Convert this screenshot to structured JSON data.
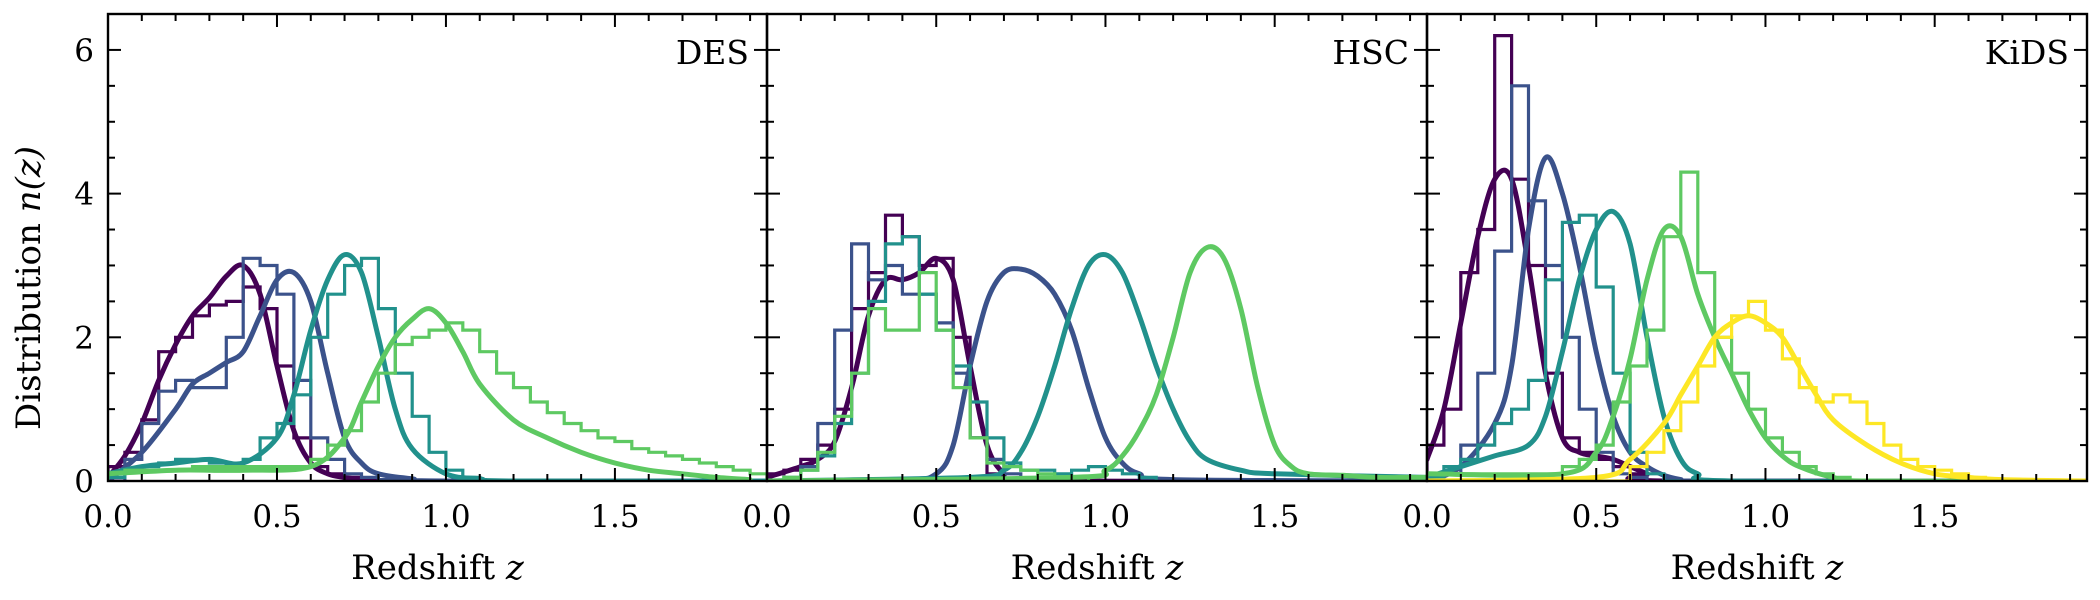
{
  "chart_data": [
    {
      "type": "line",
      "panel_label": "DES",
      "xlabel": "Redshift",
      "xlabel_symbol": "z",
      "ylabel": "Distribution",
      "ylabel_symbol": "n(z)",
      "xlim": [
        0.0,
        1.95
      ],
      "ylim": [
        0,
        6.5
      ],
      "xticks": [
        0.0,
        0.5,
        1.0,
        1.5
      ],
      "xtick_labels": [
        "0.0",
        "0.5",
        "1.0",
        "1.5"
      ],
      "yticks": [
        0,
        2,
        4,
        6
      ],
      "ytick_labels": [
        "0",
        "2",
        "4",
        "6"
      ],
      "histogram_bin_width": 0.05,
      "series": [
        {
          "color": "#440154",
          "smooth_x": [
            0.0,
            0.05,
            0.1,
            0.15,
            0.2,
            0.25,
            0.3,
            0.35,
            0.4,
            0.45,
            0.5,
            0.55,
            0.6,
            0.65,
            0.7,
            0.75,
            0.8,
            1.95
          ],
          "smooth_y": [
            0.05,
            0.35,
            0.8,
            1.4,
            1.9,
            2.3,
            2.55,
            2.85,
            3.0,
            2.6,
            1.6,
            0.7,
            0.25,
            0.1,
            0.05,
            0.02,
            0.0,
            0.0
          ],
          "hist_y": [
            0.2,
            0.4,
            0.85,
            1.8,
            2.0,
            2.3,
            2.45,
            2.5,
            2.7,
            2.4,
            1.6,
            0.6,
            0.2,
            0.1,
            0.05,
            0.02,
            0.0
          ]
        },
        {
          "color": "#3b528b",
          "smooth_x": [
            0.0,
            0.1,
            0.2,
            0.25,
            0.3,
            0.35,
            0.4,
            0.45,
            0.5,
            0.55,
            0.6,
            0.65,
            0.7,
            0.75,
            0.8,
            0.9,
            1.0,
            1.95
          ],
          "smooth_y": [
            0.0,
            0.4,
            1.0,
            1.35,
            1.5,
            1.65,
            1.8,
            2.3,
            2.8,
            2.9,
            2.5,
            1.5,
            0.6,
            0.25,
            0.1,
            0.03,
            0.0,
            0.0
          ],
          "hist_y": [
            0.0,
            0.3,
            0.8,
            1.25,
            1.4,
            1.3,
            1.3,
            2.0,
            3.1,
            3.0,
            2.6,
            1.4,
            0.6,
            0.3,
            0.1,
            0.05,
            0.02,
            0.0,
            0.0,
            0.0
          ]
        },
        {
          "color": "#21918c",
          "smooth_x": [
            0.0,
            0.1,
            0.2,
            0.3,
            0.4,
            0.5,
            0.55,
            0.6,
            0.65,
            0.7,
            0.75,
            0.8,
            0.85,
            0.9,
            1.0,
            1.1,
            1.2,
            1.95
          ],
          "smooth_y": [
            0.1,
            0.2,
            0.25,
            0.3,
            0.25,
            0.6,
            1.2,
            2.1,
            2.8,
            3.15,
            2.9,
            2.0,
            1.0,
            0.45,
            0.1,
            0.03,
            0.0,
            0.0
          ],
          "hist_y": [
            0.05,
            0.15,
            0.2,
            0.25,
            0.3,
            0.3,
            0.25,
            0.2,
            0.3,
            0.6,
            0.8,
            1.2,
            2.0,
            2.6,
            3.0,
            3.1,
            2.4,
            1.5,
            0.9,
            0.4,
            0.15,
            0.05,
            0.0,
            0.0
          ]
        },
        {
          "color": "#5ec962",
          "smooth_x": [
            0.0,
            0.2,
            0.4,
            0.6,
            0.7,
            0.75,
            0.8,
            0.85,
            0.9,
            0.95,
            1.0,
            1.05,
            1.1,
            1.2,
            1.3,
            1.4,
            1.5,
            1.6,
            1.7,
            1.8,
            1.9
          ],
          "smooth_y": [
            0.1,
            0.15,
            0.15,
            0.2,
            0.6,
            1.1,
            1.6,
            2.0,
            2.25,
            2.4,
            2.2,
            1.8,
            1.35,
            0.85,
            0.6,
            0.4,
            0.25,
            0.15,
            0.1,
            0.05,
            0.02
          ],
          "hist_y": [
            0.1,
            0.15,
            0.15,
            0.15,
            0.15,
            0.2,
            0.2,
            0.2,
            0.2,
            0.2,
            0.2,
            0.2,
            0.3,
            0.5,
            0.7,
            1.1,
            1.5,
            1.9,
            2.0,
            2.1,
            2.2,
            2.1,
            1.8,
            1.5,
            1.3,
            1.1,
            0.95,
            0.8,
            0.7,
            0.6,
            0.55,
            0.45,
            0.4,
            0.35,
            0.3,
            0.25,
            0.2,
            0.15,
            0.1
          ]
        }
      ]
    },
    {
      "type": "line",
      "panel_label": "HSC",
      "xlabel": "Redshift",
      "xlabel_symbol": "z",
      "xlim": [
        0.0,
        1.95
      ],
      "ylim": [
        0,
        6.5
      ],
      "xticks": [
        0.0,
        0.5,
        1.0,
        1.5
      ],
      "xtick_labels": [
        "0.0",
        "0.5",
        "1.0",
        "1.5"
      ],
      "histogram_bin_width": 0.05,
      "series": [
        {
          "color": "#440154",
          "smooth_x": [
            0.0,
            0.1,
            0.15,
            0.2,
            0.25,
            0.3,
            0.35,
            0.4,
            0.45,
            0.5,
            0.55,
            0.6,
            0.65,
            0.7,
            0.75,
            1.95
          ],
          "smooth_y": [
            0.05,
            0.2,
            0.3,
            0.55,
            1.3,
            2.3,
            2.8,
            2.8,
            2.9,
            3.1,
            2.8,
            1.6,
            0.5,
            0.1,
            0.0,
            0.0
          ],
          "hist_y": [
            0.1,
            0.15,
            0.3,
            0.5,
            1.0,
            2.4,
            2.9,
            3.7,
            3.4,
            3.0,
            3.1,
            2.0,
            0.6,
            0.1,
            0.0
          ]
        },
        {
          "color": "#3b528b",
          "smooth_x": [
            0.0,
            0.4,
            0.5,
            0.55,
            0.6,
            0.65,
            0.7,
            0.75,
            0.8,
            0.85,
            0.9,
            0.95,
            1.0,
            1.05,
            1.1,
            1.2,
            1.95
          ],
          "smooth_y": [
            0.0,
            0.02,
            0.1,
            0.5,
            1.6,
            2.5,
            2.9,
            2.95,
            2.85,
            2.6,
            2.1,
            1.3,
            0.6,
            0.25,
            0.1,
            0.02,
            0.0
          ],
          "hist_y": [
            0.0,
            0.02,
            0.2,
            0.8,
            2.1,
            3.3,
            2.8,
            3.0,
            2.6,
            2.6,
            2.2,
            1.5,
            0.6,
            0.3,
            0.1
          ]
        },
        {
          "color": "#21918c",
          "smooth_x": [
            0.0,
            0.6,
            0.7,
            0.75,
            0.8,
            0.85,
            0.9,
            0.95,
            1.0,
            1.05,
            1.1,
            1.15,
            1.2,
            1.25,
            1.3,
            1.4,
            1.5,
            1.95
          ],
          "smooth_y": [
            0.0,
            0.05,
            0.15,
            0.4,
            0.9,
            1.6,
            2.4,
            3.0,
            3.15,
            2.9,
            2.3,
            1.6,
            1.0,
            0.55,
            0.3,
            0.15,
            0.1,
            0.05
          ],
          "hist_y": [
            0.0,
            0.05,
            0.15,
            0.35,
            0.8,
            1.5,
            2.5,
            3.3,
            3.4,
            2.6,
            2.1,
            1.6,
            1.1,
            0.6,
            0.25,
            0.15,
            0.15,
            0.1,
            0.15,
            0.2,
            0.15,
            0.1,
            0.05
          ]
        },
        {
          "color": "#5ec962",
          "smooth_x": [
            0.0,
            0.9,
            1.0,
            1.05,
            1.1,
            1.15,
            1.2,
            1.25,
            1.3,
            1.35,
            1.4,
            1.45,
            1.5,
            1.55,
            1.6,
            1.7,
            1.8,
            1.95
          ],
          "smooth_y": [
            0.0,
            0.05,
            0.15,
            0.35,
            0.7,
            1.2,
            2.0,
            2.9,
            3.25,
            3.1,
            2.4,
            1.3,
            0.5,
            0.2,
            0.1,
            0.08,
            0.05,
            0.05
          ],
          "hist_y": [
            0.0,
            0.05,
            0.15,
            0.4,
            0.9,
            1.5,
            2.4,
            2.1,
            2.1,
            2.9,
            2.1,
            1.3,
            0.6,
            0.25,
            0.2,
            0.15,
            0.1,
            0.05,
            0.05
          ]
        }
      ]
    },
    {
      "type": "line",
      "panel_label": "KiDS",
      "xlabel": "Redshift",
      "xlabel_symbol": "z",
      "xlim": [
        0.0,
        1.95
      ],
      "ylim": [
        0,
        6.5
      ],
      "xticks": [
        0.0,
        0.5,
        1.0,
        1.5
      ],
      "xtick_labels": [
        "0.0",
        "0.5",
        "1.0",
        "1.5"
      ],
      "histogram_bin_width": 0.05,
      "series": [
        {
          "color": "#440154",
          "smooth_x": [
            0.0,
            0.05,
            0.1,
            0.15,
            0.2,
            0.25,
            0.3,
            0.35,
            0.4,
            0.45,
            0.5,
            0.55,
            0.6,
            0.65,
            0.7,
            1.95
          ],
          "smooth_y": [
            0.3,
            1.0,
            2.2,
            3.4,
            4.2,
            4.2,
            3.0,
            1.5,
            0.6,
            0.4,
            0.35,
            0.3,
            0.2,
            0.1,
            0.0,
            0.0
          ],
          "hist_y": [
            0.5,
            1.0,
            2.9,
            3.5,
            6.2,
            4.2,
            3.0,
            1.5,
            0.6,
            0.4,
            0.3,
            0.2,
            0.1
          ]
        },
        {
          "color": "#3b528b",
          "smooth_x": [
            0.0,
            0.1,
            0.2,
            0.25,
            0.3,
            0.35,
            0.4,
            0.45,
            0.5,
            0.55,
            0.6,
            0.65,
            0.7,
            0.75,
            0.8,
            1.95
          ],
          "smooth_y": [
            0.0,
            0.2,
            0.8,
            1.6,
            3.5,
            4.5,
            4.0,
            3.0,
            1.8,
            0.9,
            0.4,
            0.2,
            0.08,
            0.02,
            0.0,
            0.0
          ],
          "hist_y": [
            0.0,
            0.1,
            0.5,
            1.5,
            3.2,
            5.5,
            3.9,
            3.0,
            2.0,
            1.0,
            0.4,
            0.1,
            0.05
          ]
        },
        {
          "color": "#21918c",
          "smooth_x": [
            0.0,
            0.1,
            0.2,
            0.3,
            0.35,
            0.4,
            0.45,
            0.5,
            0.55,
            0.6,
            0.65,
            0.7,
            0.75,
            0.8,
            0.9,
            1.95
          ],
          "smooth_y": [
            0.05,
            0.2,
            0.35,
            0.5,
            0.9,
            1.8,
            2.8,
            3.5,
            3.75,
            3.3,
            2.0,
            0.9,
            0.3,
            0.1,
            0.0,
            0.0
          ],
          "hist_y": [
            0.05,
            0.2,
            0.3,
            0.5,
            0.8,
            1.0,
            1.4,
            2.8,
            3.6,
            3.7,
            2.7,
            1.5,
            0.4,
            0.1,
            0.0
          ]
        },
        {
          "color": "#5ec962",
          "smooth_x": [
            0.0,
            0.4,
            0.5,
            0.55,
            0.6,
            0.65,
            0.7,
            0.75,
            0.8,
            0.85,
            0.9,
            0.95,
            1.0,
            1.05,
            1.1,
            1.2,
            1.3,
            1.95
          ],
          "smooth_y": [
            0.1,
            0.1,
            0.4,
            0.9,
            1.7,
            2.8,
            3.5,
            3.4,
            2.6,
            2.0,
            1.5,
            1.0,
            0.6,
            0.35,
            0.2,
            0.05,
            0.0,
            0.0
          ],
          "hist_y": [
            0.1,
            0.1,
            0.1,
            0.1,
            0.1,
            0.1,
            0.1,
            0.1,
            0.2,
            0.3,
            0.5,
            1.1,
            1.6,
            2.1,
            3.4,
            4.3,
            2.9,
            2.0,
            1.5,
            1.0,
            0.6,
            0.4,
            0.2,
            0.1,
            0.05
          ]
        },
        {
          "color": "#fde725",
          "smooth_x": [
            0.0,
            0.5,
            0.6,
            0.7,
            0.75,
            0.8,
            0.85,
            0.9,
            0.95,
            1.0,
            1.05,
            1.1,
            1.15,
            1.2,
            1.3,
            1.4,
            1.5,
            1.6,
            1.7,
            1.95
          ],
          "smooth_y": [
            0.0,
            0.05,
            0.3,
            0.8,
            1.2,
            1.6,
            2.0,
            2.2,
            2.3,
            2.2,
            2.0,
            1.6,
            1.2,
            0.85,
            0.5,
            0.25,
            0.1,
            0.05,
            0.02,
            0.0
          ],
          "hist_y": [
            0.0,
            0.0,
            0.0,
            0.0,
            0.0,
            0.0,
            0.0,
            0.0,
            0.0,
            0.0,
            0.0,
            0.0,
            0.2,
            0.4,
            0.7,
            1.1,
            1.6,
            2.0,
            2.3,
            2.5,
            2.1,
            1.7,
            1.3,
            1.1,
            1.2,
            1.1,
            0.8,
            0.5,
            0.3,
            0.2,
            0.15,
            0.1,
            0.05
          ]
        }
      ]
    }
  ]
}
